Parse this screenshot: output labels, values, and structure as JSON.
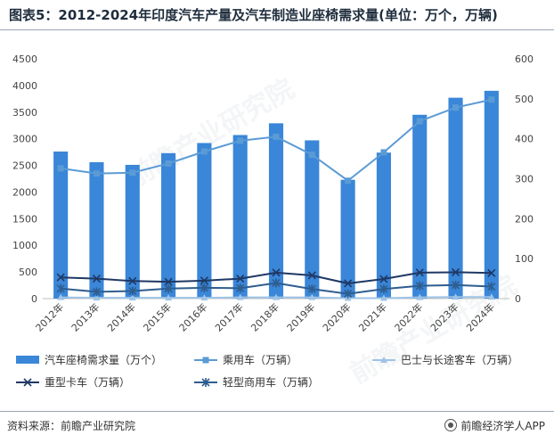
{
  "title": "图表5：2012-2024年印度汽车产量及汽车制造业座椅需求量(单位：万个，万辆)",
  "source": "资料来源：前瞻产业研究院",
  "brand": "前瞻经济学人APP",
  "watermark": "前瞻产业研究院",
  "colors": {
    "seat_bar": "#3a86d8",
    "passenger": "#5b9bd5",
    "bus": "#9dc3e6",
    "heavy_truck": "#1f3864",
    "light_commercial": "#2e5d8f"
  },
  "chart_data": {
    "type": "bar",
    "categories": [
      "2012年",
      "2013年",
      "2014年",
      "2015年",
      "2016年",
      "2017年",
      "2018年",
      "2019年",
      "2020年",
      "2021年",
      "2022年",
      "2023年",
      "2024年"
    ],
    "y_left": {
      "ticks": [
        0,
        500,
        1000,
        1500,
        2000,
        2500,
        3000,
        3500,
        4000,
        4500
      ],
      "ylim": [
        0,
        4500
      ]
    },
    "y_right": {
      "ticks": [
        0,
        100,
        200,
        300,
        400,
        500,
        600
      ],
      "ylim": [
        0,
        600
      ]
    },
    "grid": false,
    "legend_position": "bottom",
    "series": [
      {
        "name": "汽车座椅需求量（万个）",
        "kind": "bar",
        "axis": "left",
        "values": [
          2760,
          2560,
          2510,
          2730,
          2920,
          3070,
          3290,
          2970,
          2230,
          2740,
          3450,
          3770,
          3900
        ]
      },
      {
        "name": "乘用车（万辆）",
        "kind": "line",
        "marker": "square",
        "axis": "right",
        "values": [
          326,
          313,
          315,
          338,
          368,
          395,
          405,
          360,
          295,
          366,
          444,
          478,
          498
        ]
      },
      {
        "name": "巴士与长途客车（万辆）",
        "kind": "line",
        "marker": "triangle",
        "axis": "right",
        "values": [
          3,
          2,
          2,
          2,
          2,
          3,
          3,
          3,
          1,
          1,
          3,
          4,
          4
        ]
      },
      {
        "name": "重型卡车（万辆）",
        "kind": "line",
        "marker": "x",
        "axis": "right",
        "values": [
          53,
          50,
          44,
          42,
          45,
          50,
          65,
          58,
          38,
          49,
          65,
          66,
          64
        ]
      },
      {
        "name": "轻型商用车（万辆）",
        "kind": "line",
        "marker": "star",
        "axis": "right",
        "values": [
          25,
          17,
          19,
          25,
          27,
          26,
          39,
          24,
          12,
          24,
          32,
          34,
          30
        ]
      }
    ]
  }
}
